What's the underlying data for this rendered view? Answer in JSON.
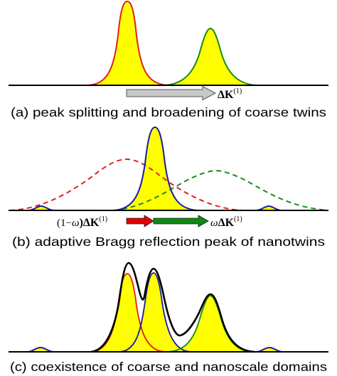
{
  "panels": [
    {
      "caption": "(a) peak splitting and broadening of coarse twins",
      "arrow_label": {
        "main": "ΔK",
        "sup": "(1)"
      }
    },
    {
      "caption": "(b) adaptive Bragg reflection peak of nanotwins",
      "left_label": {
        "prefix": "(1−",
        "omega": "ω",
        "suffix": ")ΔK",
        "sup": "(1)"
      },
      "right_label": {
        "omega": "ω",
        "main": "ΔK",
        "sup": "(1)"
      }
    },
    {
      "caption": "(c) coexistence of coarse and nanoscale domains"
    }
  ],
  "colors": {
    "fill": "#ffff00",
    "red": "#e02020",
    "green": "#1a8a1a",
    "blue": "#1a1aa0",
    "black": "#000000",
    "gray_arrow": "#c8c8c8",
    "red_arrow": "#e00000",
    "green_arrow": "#118811"
  }
}
